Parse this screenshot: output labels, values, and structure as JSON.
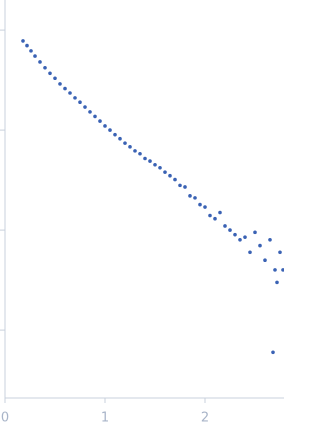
{
  "chart_data": {
    "type": "scatter",
    "log_y": true,
    "show_ytick_labels": false,
    "color": "#3a62b4",
    "xlim": [
      0,
      2.79
    ],
    "xticks": [
      0,
      1,
      2
    ],
    "ylim": [
      0.0002,
      2
    ],
    "yticks": [
      0.001,
      0.01,
      0.1,
      1
    ],
    "series": [
      {
        "color": "#3a62b4",
        "x": [
          0.18,
          0.22,
          0.26,
          0.3,
          0.35,
          0.4,
          0.45,
          0.5,
          0.55,
          0.6,
          0.65,
          0.7,
          0.75,
          0.8,
          0.85,
          0.9,
          0.95,
          1.0,
          1.05,
          1.1,
          1.15,
          1.2,
          1.25,
          1.3,
          1.35,
          1.4,
          1.45,
          1.5,
          1.55,
          1.6,
          1.65,
          1.7,
          1.75,
          1.8,
          1.85,
          1.9,
          1.95,
          2.0,
          2.05,
          2.1,
          2.15,
          2.2,
          2.25,
          2.3,
          2.35,
          2.4,
          2.45,
          2.5,
          2.55,
          2.6,
          2.65,
          2.68,
          2.7,
          2.72,
          2.75,
          2.78
        ],
        "values": [
          0.78,
          0.7,
          0.62,
          0.55,
          0.48,
          0.42,
          0.37,
          0.33,
          0.29,
          0.26,
          0.235,
          0.21,
          0.19,
          0.17,
          0.152,
          0.137,
          0.123,
          0.11,
          0.1,
          0.09,
          0.082,
          0.074,
          0.068,
          0.062,
          0.058,
          0.052,
          0.049,
          0.045,
          0.042,
          0.038,
          0.035,
          0.032,
          0.028,
          0.027,
          0.022,
          0.021,
          0.018,
          0.017,
          0.014,
          0.013,
          0.015,
          0.011,
          0.01,
          0.009,
          0.008,
          0.0085,
          0.006,
          0.0095,
          0.007,
          0.005,
          0.008,
          0.0006,
          0.004,
          0.003,
          0.006,
          0.004
        ]
      }
    ]
  }
}
